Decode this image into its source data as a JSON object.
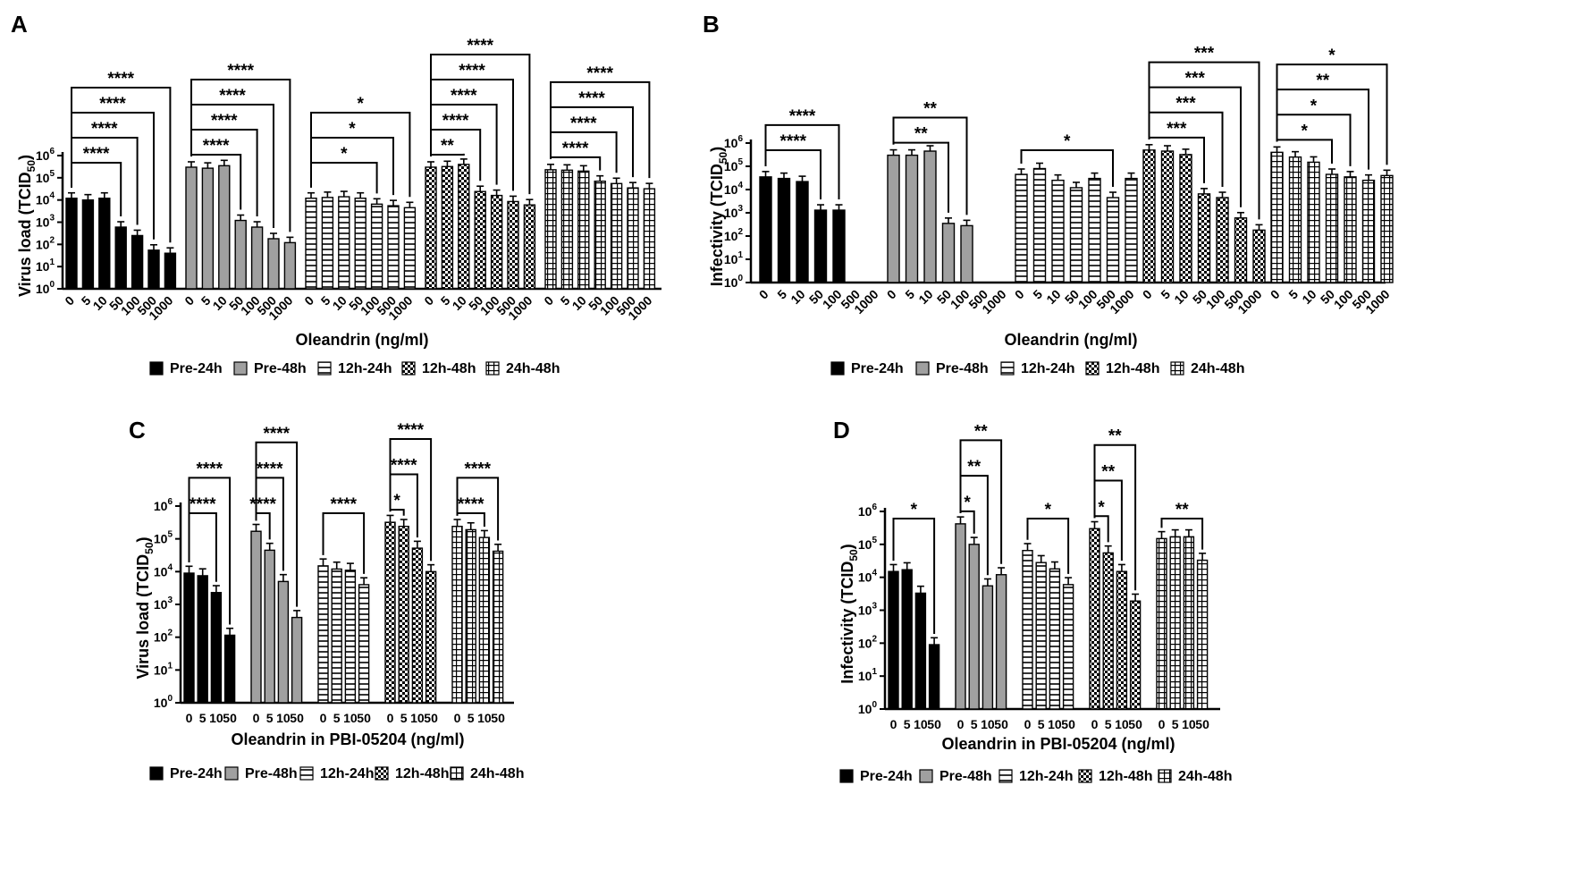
{
  "legend": [
    {
      "name": "Pre-24h",
      "pattern": "solid"
    },
    {
      "name": "Pre-48h",
      "pattern": "gray"
    },
    {
      "name": "12h-24h",
      "pattern": "hlines"
    },
    {
      "name": "12h-48h",
      "pattern": "checker"
    },
    {
      "name": "24h-48h",
      "pattern": "grid"
    }
  ],
  "colors": {
    "solid": "#000000",
    "gray": "#a0a0a0",
    "background": "#ffffff"
  },
  "chart_data": [
    {
      "panel": "A",
      "type": "bar",
      "scale": "log10",
      "ylabel": "Virus load (TCID50)",
      "xlabel": "Oleandrin (ng/ml)",
      "ylim_exp": [
        0,
        6
      ],
      "y_ticks": [
        "10^0",
        "10^1",
        "10^2",
        "10^3",
        "10^4",
        "10^5",
        "10^6"
      ],
      "categories": [
        "0",
        "5",
        "10",
        "50",
        "100",
        "500",
        "1000"
      ],
      "series": [
        {
          "name": "Pre-24h",
          "values": [
            12000,
            10000,
            12000,
            600,
            250,
            55,
            40
          ],
          "brackets": [
            {
              "to": 3,
              "label": "****"
            },
            {
              "to": 4,
              "label": "****"
            },
            {
              "to": 5,
              "label": "****"
            },
            {
              "to": 6,
              "label": "****"
            }
          ]
        },
        {
          "name": "Pre-48h",
          "values": [
            300000,
            270000,
            350000,
            1200,
            600,
            180,
            120
          ],
          "brackets": [
            {
              "to": 3,
              "label": "****"
            },
            {
              "to": 4,
              "label": "****"
            },
            {
              "to": 5,
              "label": "****"
            },
            {
              "to": 6,
              "label": "****"
            }
          ]
        },
        {
          "name": "12h-24h",
          "values": [
            12000,
            13000,
            14000,
            12000,
            6500,
            5500,
            4500
          ],
          "brackets": [
            {
              "to": 4,
              "label": "*"
            },
            {
              "to": 5,
              "label": "*"
            },
            {
              "to": 6,
              "label": "*"
            }
          ]
        },
        {
          "name": "12h-48h",
          "values": [
            300000,
            320000,
            400000,
            24000,
            16000,
            8500,
            6000
          ],
          "brackets": [
            {
              "to": 2,
              "label": "**"
            },
            {
              "to": 3,
              "label": "****"
            },
            {
              "to": 4,
              "label": "****"
            },
            {
              "to": 5,
              "label": "****"
            },
            {
              "to": 6,
              "label": "****"
            }
          ]
        },
        {
          "name": "24h-48h",
          "values": [
            230000,
            220000,
            200000,
            70000,
            55000,
            35000,
            32000
          ],
          "brackets": [
            {
              "to": 3,
              "label": "****"
            },
            {
              "to": 4,
              "label": "****"
            },
            {
              "to": 5,
              "label": "****"
            },
            {
              "to": 6,
              "label": "****"
            }
          ]
        }
      ]
    },
    {
      "panel": "B",
      "type": "bar",
      "scale": "log10",
      "ylabel": "Infectivity (TCID50)",
      "xlabel": "Oleandrin (ng/ml)",
      "ylim_exp": [
        0,
        6
      ],
      "y_ticks": [
        "10^0",
        "10^1",
        "10^2",
        "10^3",
        "10^4",
        "10^5",
        "10^6"
      ],
      "categories": [
        "0",
        "5",
        "10",
        "50",
        "100",
        "500",
        "1000"
      ],
      "series": [
        {
          "name": "Pre-24h",
          "values": [
            35000,
            30000,
            22000,
            1300,
            1300,
            null,
            null
          ],
          "brackets": [
            {
              "to": 3,
              "label": "****"
            },
            {
              "to": 4,
              "label": "****"
            }
          ]
        },
        {
          "name": "Pre-48h",
          "values": [
            300000,
            300000,
            450000,
            350,
            280,
            null,
            null
          ],
          "brackets": [
            {
              "to": 3,
              "label": "**"
            },
            {
              "to": 4,
              "label": "**"
            }
          ]
        },
        {
          "name": "12h-24h",
          "values": [
            45000,
            80000,
            25000,
            12000,
            30000,
            4500,
            30000
          ],
          "brackets": [
            {
              "to": 5,
              "label": "*"
            }
          ]
        },
        {
          "name": "12h-48h",
          "values": [
            500000,
            450000,
            320000,
            6500,
            4500,
            600,
            180
          ],
          "brackets": [
            {
              "to": 3,
              "label": "***"
            },
            {
              "to": 4,
              "label": "***"
            },
            {
              "to": 5,
              "label": "***"
            },
            {
              "to": 6,
              "label": "***"
            }
          ]
        },
        {
          "name": "24h-48h",
          "values": [
            400000,
            250000,
            150000,
            45000,
            35000,
            25000,
            40000
          ],
          "brackets": [
            {
              "to": 3,
              "label": "*"
            },
            {
              "to": 4,
              "label": "*"
            },
            {
              "to": 5,
              "label": "**"
            },
            {
              "to": 6,
              "label": "*"
            }
          ]
        }
      ]
    },
    {
      "panel": "C",
      "type": "bar",
      "scale": "log10",
      "ylabel": "Virus load (TCID50)",
      "xlabel": "Oleandrin in PBI-05204 (ng/ml)",
      "ylim_exp": [
        0,
        6
      ],
      "y_ticks": [
        "10^0",
        "10^1",
        "10^2",
        "10^3",
        "10^4",
        "10^5",
        "10^6"
      ],
      "categories": [
        "0",
        "5",
        "10",
        "50"
      ],
      "series": [
        {
          "name": "Pre-24h",
          "values": [
            9000,
            7500,
            2300,
            115
          ],
          "brackets": [
            {
              "to": 2,
              "label": "****"
            },
            {
              "to": 3,
              "label": "****"
            }
          ]
        },
        {
          "name": "Pre-48h",
          "values": [
            170000,
            45000,
            5000,
            400
          ],
          "brackets": [
            {
              "to": 1,
              "label": "****"
            },
            {
              "to": 2,
              "label": "****"
            },
            {
              "to": 3,
              "label": "****"
            }
          ]
        },
        {
          "name": "12h-24h",
          "values": [
            15000,
            12000,
            11000,
            4000
          ],
          "brackets": [
            {
              "to": 3,
              "label": "****"
            }
          ]
        },
        {
          "name": "12h-48h",
          "values": [
            320000,
            240000,
            52000,
            10000
          ],
          "brackets": [
            {
              "to": 1,
              "label": "*"
            },
            {
              "to": 2,
              "label": "****"
            },
            {
              "to": 3,
              "label": "****"
            }
          ]
        },
        {
          "name": "24h-48h",
          "values": [
            240000,
            190000,
            110000,
            42000
          ],
          "brackets": [
            {
              "to": 2,
              "label": "****"
            },
            {
              "to": 3,
              "label": "****"
            }
          ]
        }
      ]
    },
    {
      "panel": "D",
      "type": "bar",
      "scale": "log10",
      "ylabel": "Infectivity (TCID50)",
      "xlabel": "Oleandrin in PBI-05204 (ng/ml)",
      "ylim_exp": [
        0,
        6
      ],
      "y_ticks": [
        "10^0",
        "10^1",
        "10^2",
        "10^3",
        "10^4",
        "10^5",
        "10^6"
      ],
      "categories": [
        "0",
        "5",
        "10",
        "50"
      ],
      "series": [
        {
          "name": "Pre-24h",
          "values": [
            15000,
            17000,
            3300,
            90
          ],
          "brackets": [
            {
              "to": 3,
              "label": "*"
            }
          ]
        },
        {
          "name": "Pre-48h",
          "values": [
            420000,
            100000,
            5500,
            12000
          ],
          "brackets": [
            {
              "to": 1,
              "label": "*"
            },
            {
              "to": 2,
              "label": "**"
            },
            {
              "to": 3,
              "label": "**"
            }
          ]
        },
        {
          "name": "12h-24h",
          "values": [
            65000,
            28000,
            18000,
            6000
          ],
          "brackets": [
            {
              "to": 3,
              "label": "*"
            }
          ]
        },
        {
          "name": "12h-48h",
          "values": [
            300000,
            55000,
            15000,
            1900
          ],
          "brackets": [
            {
              "to": 1,
              "label": "*"
            },
            {
              "to": 2,
              "label": "**"
            },
            {
              "to": 3,
              "label": "**"
            }
          ]
        },
        {
          "name": "24h-48h",
          "values": [
            150000,
            170000,
            170000,
            33000
          ],
          "brackets": [
            {
              "to": 3,
              "label": "**"
            }
          ]
        }
      ]
    }
  ]
}
